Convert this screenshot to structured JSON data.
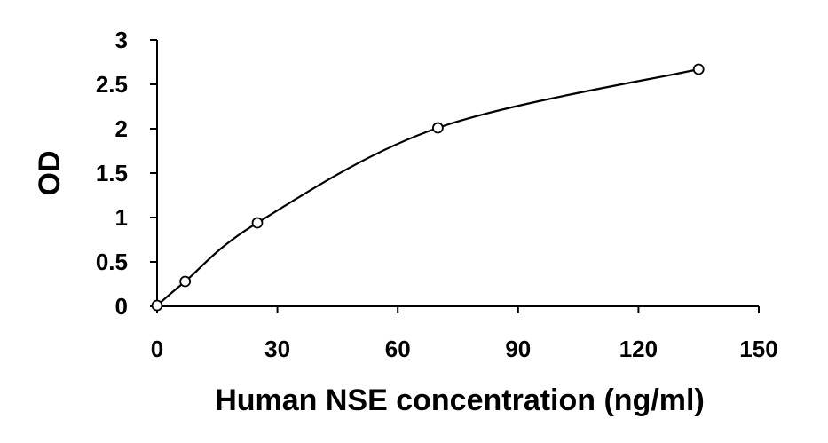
{
  "chart_data": {
    "type": "scatter",
    "title": "",
    "xlabel": "Human NSE concentration (ng/ml)",
    "ylabel": "OD",
    "xlim": [
      0,
      150
    ],
    "ylim": [
      0,
      3
    ],
    "x_ticks": [
      "0",
      "30",
      "60",
      "90",
      "120",
      "150"
    ],
    "y_ticks": [
      "0",
      "0.5",
      "1",
      "1.5",
      "2",
      "2.5",
      "3"
    ],
    "grid": false,
    "legend": "none",
    "series": [
      {
        "points": [
          {
            "x": 0,
            "y": 0.01
          },
          {
            "x": 7,
            "y": 0.28
          },
          {
            "x": 25,
            "y": 0.94
          },
          {
            "x": 70,
            "y": 2.01
          },
          {
            "x": 135,
            "y": 2.67
          }
        ],
        "marker": "open-circle",
        "color": "#000000",
        "fit": "smooth-curve"
      }
    ]
  }
}
